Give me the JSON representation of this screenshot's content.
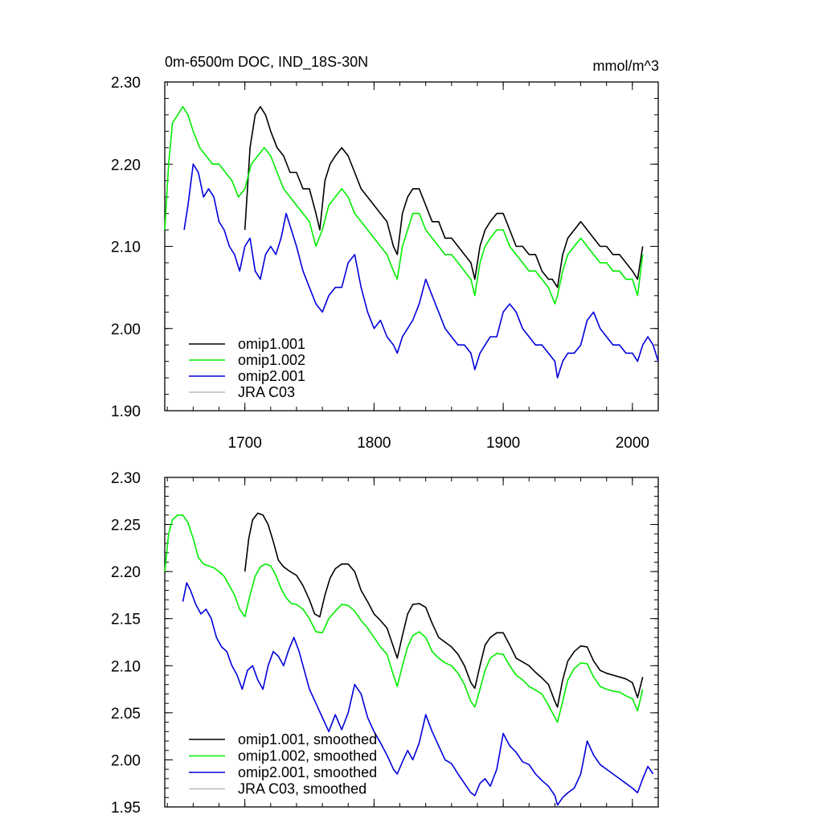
{
  "chart_data": [
    {
      "type": "line",
      "title": "0m-6500m DOC, IND_18S-30N",
      "units": "mmol/m^3",
      "xlim": [
        1638,
        2020
      ],
      "ylim": [
        1.9,
        2.3
      ],
      "xticks": [
        1700,
        1800,
        1900,
        2000
      ],
      "xtick_labels": [
        "1700",
        "1800",
        "1900",
        "2000"
      ],
      "yticks": [
        1.9,
        2.0,
        2.1,
        2.2,
        2.3
      ],
      "ytick_labels": [
        "1.90",
        "2.00",
        "2.10",
        "2.20",
        "2.30"
      ],
      "grid": false,
      "legend_position": "bottom-left",
      "series": [
        {
          "name": "omip1.001",
          "color": "#000000",
          "x": [
            1700,
            1704,
            1708,
            1712,
            1716,
            1720,
            1725,
            1730,
            1735,
            1740,
            1745,
            1750,
            1755,
            1758,
            1762,
            1766,
            1770,
            1775,
            1780,
            1785,
            1790,
            1795,
            1800,
            1805,
            1810,
            1815,
            1818,
            1822,
            1826,
            1830,
            1835,
            1840,
            1845,
            1850,
            1855,
            1860,
            1865,
            1870,
            1875,
            1878,
            1882,
            1886,
            1890,
            1895,
            1900,
            1905,
            1910,
            1915,
            1920,
            1925,
            1930,
            1935,
            1938,
            1942,
            1946,
            1950,
            1955,
            1960,
            1965,
            1970,
            1975,
            1980,
            1985,
            1990,
            1995,
            2000,
            2004,
            2008
          ],
          "y": [
            2.12,
            2.22,
            2.26,
            2.27,
            2.26,
            2.24,
            2.22,
            2.21,
            2.19,
            2.19,
            2.17,
            2.17,
            2.14,
            2.12,
            2.18,
            2.2,
            2.21,
            2.22,
            2.21,
            2.19,
            2.17,
            2.16,
            2.15,
            2.14,
            2.13,
            2.1,
            2.09,
            2.14,
            2.16,
            2.17,
            2.17,
            2.15,
            2.13,
            2.13,
            2.11,
            2.11,
            2.1,
            2.09,
            2.08,
            2.06,
            2.1,
            2.12,
            2.13,
            2.14,
            2.14,
            2.12,
            2.1,
            2.1,
            2.09,
            2.09,
            2.07,
            2.06,
            2.06,
            2.05,
            2.09,
            2.11,
            2.12,
            2.13,
            2.12,
            2.11,
            2.1,
            2.1,
            2.09,
            2.09,
            2.08,
            2.07,
            2.06,
            2.1
          ]
        },
        {
          "name": "omip1.002",
          "color": "#00ee00",
          "x": [
            1638,
            1641,
            1644,
            1648,
            1652,
            1656,
            1660,
            1665,
            1670,
            1675,
            1680,
            1685,
            1690,
            1695,
            1700,
            1705,
            1710,
            1715,
            1720,
            1725,
            1730,
            1735,
            1740,
            1745,
            1750,
            1755,
            1760,
            1765,
            1770,
            1775,
            1780,
            1785,
            1790,
            1795,
            1800,
            1805,
            1810,
            1815,
            1818,
            1822,
            1826,
            1830,
            1835,
            1840,
            1845,
            1850,
            1855,
            1860,
            1865,
            1870,
            1875,
            1878,
            1882,
            1886,
            1890,
            1895,
            1900,
            1905,
            1910,
            1915,
            1920,
            1925,
            1930,
            1935,
            1940,
            1942,
            1946,
            1950,
            1955,
            1960,
            1965,
            1970,
            1975,
            1980,
            1985,
            1990,
            1995,
            2000,
            2004,
            2008
          ],
          "y": [
            2.12,
            2.2,
            2.25,
            2.26,
            2.27,
            2.26,
            2.24,
            2.22,
            2.21,
            2.2,
            2.2,
            2.19,
            2.18,
            2.16,
            2.17,
            2.2,
            2.21,
            2.22,
            2.21,
            2.19,
            2.17,
            2.16,
            2.15,
            2.14,
            2.13,
            2.1,
            2.12,
            2.15,
            2.16,
            2.17,
            2.16,
            2.14,
            2.13,
            2.12,
            2.11,
            2.1,
            2.09,
            2.07,
            2.06,
            2.1,
            2.12,
            2.14,
            2.14,
            2.12,
            2.11,
            2.1,
            2.09,
            2.09,
            2.08,
            2.07,
            2.06,
            2.04,
            2.08,
            2.1,
            2.11,
            2.12,
            2.12,
            2.1,
            2.09,
            2.08,
            2.07,
            2.07,
            2.06,
            2.05,
            2.03,
            2.04,
            2.07,
            2.09,
            2.1,
            2.11,
            2.1,
            2.09,
            2.08,
            2.08,
            2.07,
            2.07,
            2.06,
            2.06,
            2.04,
            2.09
          ]
        },
        {
          "name": "omip2.001",
          "color": "#0000dd",
          "x": [
            1653,
            1656,
            1660,
            1664,
            1668,
            1672,
            1676,
            1680,
            1684,
            1688,
            1692,
            1696,
            1700,
            1704,
            1708,
            1712,
            1716,
            1720,
            1724,
            1728,
            1732,
            1736,
            1740,
            1745,
            1750,
            1755,
            1760,
            1765,
            1770,
            1775,
            1780,
            1785,
            1790,
            1795,
            1800,
            1805,
            1810,
            1815,
            1818,
            1822,
            1826,
            1830,
            1835,
            1840,
            1845,
            1850,
            1855,
            1860,
            1865,
            1870,
            1875,
            1878,
            1882,
            1886,
            1890,
            1895,
            1900,
            1905,
            1910,
            1915,
            1920,
            1925,
            1930,
            1935,
            1940,
            1942,
            1946,
            1950,
            1955,
            1960,
            1965,
            1970,
            1975,
            1980,
            1985,
            1990,
            1995,
            2000,
            2004,
            2008,
            2012,
            2016,
            2020
          ],
          "y": [
            2.12,
            2.15,
            2.2,
            2.19,
            2.16,
            2.17,
            2.16,
            2.13,
            2.12,
            2.1,
            2.09,
            2.07,
            2.1,
            2.11,
            2.07,
            2.06,
            2.09,
            2.1,
            2.09,
            2.11,
            2.14,
            2.12,
            2.1,
            2.07,
            2.05,
            2.03,
            2.02,
            2.04,
            2.05,
            2.05,
            2.08,
            2.09,
            2.05,
            2.02,
            2.0,
            2.01,
            1.99,
            1.98,
            1.97,
            1.99,
            2.0,
            2.01,
            2.03,
            2.06,
            2.04,
            2.02,
            2.0,
            1.99,
            1.98,
            1.98,
            1.97,
            1.95,
            1.97,
            1.98,
            1.99,
            1.99,
            2.02,
            2.03,
            2.02,
            2.0,
            1.99,
            1.98,
            1.98,
            1.97,
            1.96,
            1.94,
            1.96,
            1.97,
            1.97,
            1.98,
            2.01,
            2.02,
            2.0,
            1.99,
            1.98,
            1.98,
            1.97,
            1.97,
            1.96,
            1.98,
            1.99,
            1.98,
            1.96
          ]
        },
        {
          "name": "JRA C03",
          "color": "#bbbbbb",
          "x": [],
          "y": []
        }
      ]
    },
    {
      "type": "line",
      "xlim": [
        1638,
        2020
      ],
      "ylim": [
        1.95,
        2.3
      ],
      "yticks": [
        1.95,
        2.0,
        2.05,
        2.1,
        2.15,
        2.2,
        2.25,
        2.3
      ],
      "ytick_labels": [
        "1.95",
        "2.00",
        "2.05",
        "2.10",
        "2.15",
        "2.20",
        "2.25",
        "2.30"
      ],
      "xticks": [
        1700,
        1800,
        1900,
        2000
      ],
      "grid": false,
      "legend_position": "bottom-left",
      "series": [
        {
          "name": "omip1.001, smoothed",
          "color": "#000000",
          "x": [
            1700,
            1703,
            1706,
            1710,
            1714,
            1718,
            1722,
            1726,
            1730,
            1735,
            1740,
            1745,
            1750,
            1754,
            1758,
            1762,
            1766,
            1770,
            1775,
            1780,
            1785,
            1790,
            1795,
            1800,
            1805,
            1810,
            1815,
            1818,
            1822,
            1826,
            1830,
            1835,
            1840,
            1845,
            1850,
            1855,
            1860,
            1865,
            1870,
            1875,
            1878,
            1882,
            1886,
            1890,
            1895,
            1900,
            1905,
            1910,
            1915,
            1920,
            1925,
            1930,
            1935,
            1940,
            1942,
            1946,
            1950,
            1955,
            1960,
            1965,
            1970,
            1975,
            1980,
            1985,
            1990,
            1995,
            2000,
            2004,
            2008
          ],
          "y": [
            2.2,
            2.235,
            2.255,
            2.262,
            2.26,
            2.25,
            2.232,
            2.212,
            2.205,
            2.2,
            2.196,
            2.185,
            2.17,
            2.155,
            2.152,
            2.175,
            2.193,
            2.203,
            2.208,
            2.208,
            2.2,
            2.18,
            2.168,
            2.155,
            2.148,
            2.14,
            2.12,
            2.108,
            2.132,
            2.155,
            2.165,
            2.166,
            2.162,
            2.145,
            2.13,
            2.125,
            2.12,
            2.112,
            2.1,
            2.082,
            2.076,
            2.1,
            2.122,
            2.13,
            2.135,
            2.135,
            2.122,
            2.108,
            2.104,
            2.1,
            2.093,
            2.087,
            2.08,
            2.062,
            2.056,
            2.085,
            2.105,
            2.115,
            2.121,
            2.12,
            2.105,
            2.095,
            2.092,
            2.09,
            2.088,
            2.086,
            2.082,
            2.066,
            2.088
          ]
        },
        {
          "name": "omip1.002, smoothed",
          "color": "#00ee00",
          "x": [
            1638,
            1641,
            1644,
            1648,
            1652,
            1656,
            1660,
            1664,
            1668,
            1672,
            1676,
            1680,
            1684,
            1688,
            1692,
            1696,
            1700,
            1704,
            1708,
            1712,
            1716,
            1720,
            1724,
            1728,
            1732,
            1736,
            1740,
            1745,
            1750,
            1755,
            1760,
            1765,
            1770,
            1775,
            1780,
            1785,
            1790,
            1795,
            1800,
            1805,
            1810,
            1815,
            1818,
            1822,
            1826,
            1830,
            1835,
            1840,
            1845,
            1850,
            1855,
            1860,
            1865,
            1870,
            1875,
            1878,
            1882,
            1886,
            1890,
            1895,
            1900,
            1905,
            1910,
            1915,
            1920,
            1925,
            1930,
            1935,
            1940,
            1942,
            1946,
            1950,
            1955,
            1960,
            1965,
            1970,
            1975,
            1980,
            1985,
            1990,
            1995,
            2000,
            2004,
            2008
          ],
          "y": [
            2.2,
            2.24,
            2.255,
            2.26,
            2.26,
            2.252,
            2.235,
            2.215,
            2.208,
            2.206,
            2.204,
            2.2,
            2.195,
            2.185,
            2.175,
            2.16,
            2.152,
            2.175,
            2.195,
            2.205,
            2.208,
            2.206,
            2.196,
            2.182,
            2.172,
            2.166,
            2.165,
            2.16,
            2.15,
            2.136,
            2.135,
            2.15,
            2.158,
            2.165,
            2.164,
            2.158,
            2.148,
            2.14,
            2.13,
            2.12,
            2.112,
            2.09,
            2.078,
            2.1,
            2.12,
            2.132,
            2.136,
            2.13,
            2.115,
            2.108,
            2.103,
            2.1,
            2.092,
            2.08,
            2.062,
            2.056,
            2.075,
            2.095,
            2.108,
            2.113,
            2.112,
            2.1,
            2.09,
            2.085,
            2.078,
            2.074,
            2.07,
            2.058,
            2.045,
            2.04,
            2.062,
            2.085,
            2.097,
            2.103,
            2.102,
            2.088,
            2.078,
            2.075,
            2.073,
            2.072,
            2.068,
            2.065,
            2.052,
            2.075
          ]
        },
        {
          "name": "omip2.001, smoothed",
          "color": "#0000dd",
          "x": [
            1652,
            1655,
            1658,
            1662,
            1666,
            1670,
            1674,
            1678,
            1682,
            1686,
            1690,
            1694,
            1698,
            1702,
            1706,
            1710,
            1714,
            1718,
            1722,
            1726,
            1730,
            1734,
            1738,
            1742,
            1746,
            1750,
            1755,
            1760,
            1765,
            1770,
            1775,
            1780,
            1785,
            1790,
            1795,
            1800,
            1805,
            1810,
            1815,
            1818,
            1822,
            1826,
            1830,
            1835,
            1840,
            1845,
            1850,
            1855,
            1860,
            1865,
            1870,
            1875,
            1878,
            1882,
            1886,
            1890,
            1895,
            1900,
            1905,
            1910,
            1915,
            1920,
            1925,
            1930,
            1935,
            1940,
            1942,
            1946,
            1950,
            1955,
            1960,
            1965,
            1970,
            1975,
            1980,
            1985,
            1990,
            1995,
            2000,
            2004,
            2008,
            2012,
            2016
          ],
          "y": [
            2.168,
            2.188,
            2.18,
            2.165,
            2.155,
            2.16,
            2.15,
            2.13,
            2.12,
            2.115,
            2.1,
            2.09,
            2.075,
            2.095,
            2.1,
            2.085,
            2.075,
            2.1,
            2.115,
            2.11,
            2.1,
            2.117,
            2.13,
            2.115,
            2.095,
            2.075,
            2.06,
            2.045,
            2.03,
            2.048,
            2.032,
            2.05,
            2.08,
            2.07,
            2.045,
            2.03,
            2.018,
            2.005,
            1.99,
            1.985,
            1.998,
            2.01,
            2.0,
            2.018,
            2.048,
            2.03,
            2.015,
            2.0,
            1.996,
            1.985,
            1.975,
            1.965,
            1.962,
            1.975,
            1.98,
            1.972,
            1.99,
            2.028,
            2.015,
            2.008,
            1.998,
            1.995,
            1.985,
            1.978,
            1.972,
            1.962,
            1.952,
            1.96,
            1.965,
            1.97,
            1.985,
            2.02,
            2.005,
            1.995,
            1.99,
            1.985,
            1.98,
            1.975,
            1.97,
            1.965,
            1.98,
            1.993,
            1.985
          ]
        },
        {
          "name": "JRA C03, smoothed",
          "color": "#bbbbbb",
          "x": [],
          "y": []
        }
      ]
    }
  ]
}
